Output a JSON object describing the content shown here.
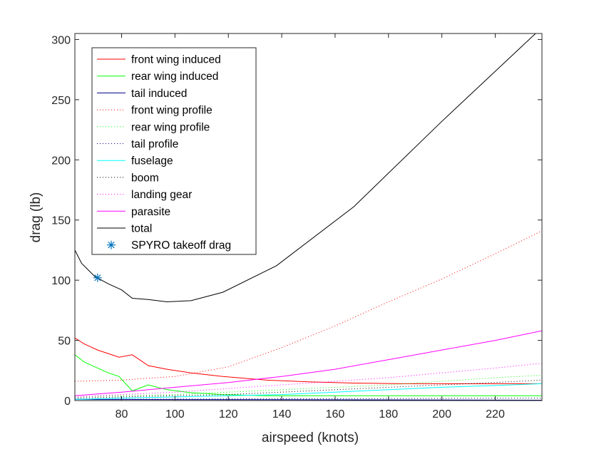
{
  "chart_data": {
    "type": "line",
    "title": "",
    "xlabel": "airspeed (knots)",
    "ylabel": "drag (lb)",
    "xlim": [
      62.5,
      237.5
    ],
    "ylim": [
      0,
      305
    ],
    "xticks": [
      80,
      100,
      120,
      140,
      160,
      180,
      200,
      220
    ],
    "yticks": [
      0,
      50,
      100,
      150,
      200,
      250,
      300
    ],
    "grid": false,
    "legend_position": "top-left",
    "series": [
      {
        "name": "front wing induced",
        "color": "#ff0000",
        "style": "solid",
        "x": [
          62.5,
          66,
          71,
          75,
          79,
          84,
          90,
          97,
          106,
          118,
          134,
          150,
          167,
          185,
          205,
          222,
          237.5
        ],
        "y": [
          52,
          47,
          42,
          39,
          36,
          38,
          29,
          26,
          23,
          20,
          17,
          15.5,
          14.5,
          14,
          14,
          14,
          14
        ]
      },
      {
        "name": "rear wing induced",
        "color": "#00ff00",
        "style": "solid",
        "x": [
          62.5,
          66,
          71,
          75,
          79,
          84,
          90,
          97,
          106,
          118,
          134,
          150,
          167,
          185,
          205,
          222,
          237.5
        ],
        "y": [
          38,
          32,
          27,
          23,
          20,
          8,
          13,
          9,
          6.5,
          5,
          4,
          4,
          4,
          4,
          4,
          4,
          4
        ]
      },
      {
        "name": "tail induced",
        "color": "#00008b",
        "style": "solid",
        "x": [
          62.5,
          237.5
        ],
        "y": [
          1,
          0.3
        ]
      },
      {
        "name": "front wing profile",
        "color": "#ff0000",
        "style": "dotted",
        "x": [
          62.5,
          80,
          100,
          120,
          140,
          160,
          180,
          200,
          220,
          237.5
        ],
        "y": [
          16,
          17,
          20,
          28,
          44,
          62,
          82,
          101,
          122,
          141
        ]
      },
      {
        "name": "rear wing profile",
        "color": "#00ff00",
        "style": "dotted",
        "x": [
          62.5,
          80,
          100,
          120,
          140,
          160,
          180,
          200,
          220,
          237.5
        ],
        "y": [
          3,
          4,
          5,
          7,
          9,
          11,
          13,
          16,
          19,
          21
        ]
      },
      {
        "name": "tail profile",
        "color": "#00008b",
        "style": "dotted",
        "x": [
          62.5,
          237.5
        ],
        "y": [
          1,
          2
        ]
      },
      {
        "name": "fuselage",
        "color": "#00ffff",
        "style": "solid",
        "x": [
          62.5,
          80,
          100,
          120,
          140,
          160,
          180,
          200,
          220,
          237.5
        ],
        "y": [
          1,
          2,
          3,
          4,
          5,
          7,
          9,
          11,
          12.5,
          14
        ]
      },
      {
        "name": "boom",
        "color": "#000000",
        "style": "dotted",
        "x": [
          62.5,
          80,
          100,
          120,
          140,
          160,
          180,
          200,
          220,
          237.5
        ],
        "y": [
          2,
          3,
          4,
          5,
          7,
          9,
          11,
          13,
          15,
          17
        ]
      },
      {
        "name": "landing gear",
        "color": "#ff00ff",
        "style": "dotted",
        "x": [
          62.5,
          80,
          100,
          120,
          140,
          160,
          180,
          200,
          220,
          237.5
        ],
        "y": [
          3,
          5,
          7,
          10,
          13,
          16,
          19,
          23,
          27,
          31
        ]
      },
      {
        "name": "parasite",
        "color": "#ff00ff",
        "style": "solid",
        "x": [
          62.5,
          80,
          100,
          120,
          140,
          160,
          180,
          200,
          220,
          237.5
        ],
        "y": [
          4,
          7,
          11,
          15,
          20,
          26,
          34,
          42,
          50,
          58
        ]
      },
      {
        "name": "total",
        "color": "#000000",
        "style": "solid",
        "x": [
          62.5,
          65,
          70,
          75,
          80,
          84,
          90,
          97,
          106,
          118,
          138,
          167,
          200,
          237.5
        ],
        "y": [
          125,
          114,
          103,
          97,
          92,
          85,
          84,
          82,
          83,
          90,
          112,
          161,
          232,
          310
        ]
      },
      {
        "name": "SPYRO takeoff drag",
        "color": "#0072bd",
        "style": "marker-asterisk",
        "x": [
          71
        ],
        "y": [
          102
        ]
      }
    ]
  }
}
